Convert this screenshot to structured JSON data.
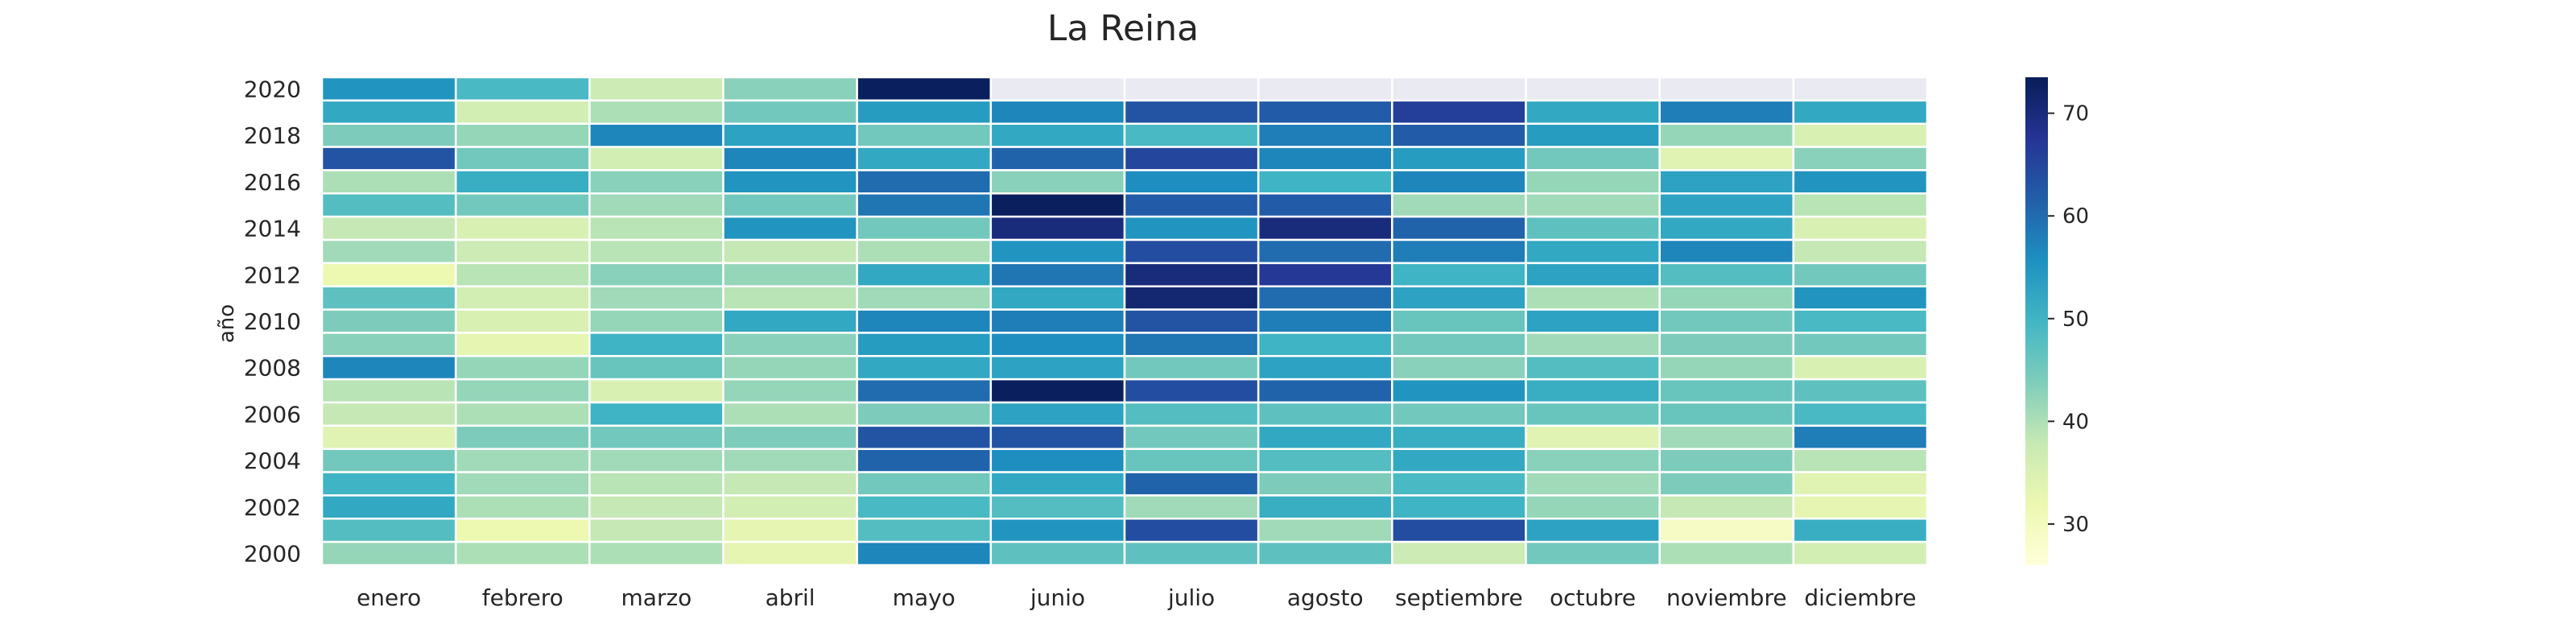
{
  "chart_data": {
    "type": "heatmap",
    "title": "La Reina",
    "xlabel": "",
    "ylabel": "año",
    "x": [
      "enero",
      "febrero",
      "marzo",
      "abril",
      "mayo",
      "junio",
      "julio",
      "agosto",
      "septiembre",
      "octubre",
      "noviembre",
      "diciembre"
    ],
    "y_ticks": [
      "2020",
      "2018",
      "2016",
      "2014",
      "2012",
      "2010",
      "2008",
      "2006",
      "2004",
      "2002",
      "2000"
    ],
    "rows": [
      {
        "year": 2020,
        "values": [
          55,
          49,
          37,
          43,
          73,
          null,
          null,
          null,
          null,
          null,
          null,
          null
        ]
      },
      {
        "year": 2019,
        "values": [
          52,
          36,
          40,
          45,
          54,
          57,
          63,
          62,
          66,
          52,
          58,
          52
        ]
      },
      {
        "year": 2018,
        "values": [
          44,
          42,
          57,
          53,
          45,
          52,
          49,
          58,
          62,
          54,
          42,
          35
        ]
      },
      {
        "year": 2017,
        "values": [
          63,
          45,
          36,
          57,
          52,
          61,
          65,
          57,
          54,
          45,
          34,
          43
        ]
      },
      {
        "year": 2016,
        "values": [
          40,
          51,
          43,
          55,
          60,
          43,
          56,
          50,
          57,
          42,
          53,
          55
        ]
      },
      {
        "year": 2015,
        "values": [
          48,
          45,
          41,
          45,
          59,
          73,
          62,
          62,
          41,
          41,
          53,
          39
        ]
      },
      {
        "year": 2014,
        "values": [
          38,
          35,
          39,
          55,
          45,
          70,
          55,
          70,
          61,
          47,
          52,
          35
        ]
      },
      {
        "year": 2013,
        "values": [
          41,
          37,
          39,
          38,
          40,
          55,
          64,
          60,
          58,
          52,
          57,
          38
        ]
      },
      {
        "year": 2012,
        "values": [
          32,
          39,
          43,
          42,
          52,
          59,
          70,
          67,
          50,
          53,
          48,
          45
        ]
      },
      {
        "year": 2011,
        "values": [
          47,
          36,
          41,
          39,
          41,
          52,
          71,
          60,
          53,
          40,
          42,
          55
        ]
      },
      {
        "year": 2010,
        "values": [
          44,
          35,
          42,
          52,
          57,
          58,
          63,
          58,
          46,
          53,
          45,
          49
        ]
      },
      {
        "year": 2009,
        "values": [
          43,
          33,
          50,
          43,
          54,
          56,
          59,
          50,
          45,
          41,
          44,
          45
        ]
      },
      {
        "year": 2008,
        "values": [
          57,
          42,
          46,
          42,
          52,
          53,
          45,
          53,
          43,
          48,
          42,
          35
        ]
      },
      {
        "year": 2007,
        "values": [
          39,
          42,
          35,
          42,
          60,
          73,
          64,
          61,
          55,
          51,
          46,
          47
        ]
      },
      {
        "year": 2006,
        "values": [
          38,
          40,
          50,
          40,
          44,
          53,
          48,
          47,
          45,
          46,
          46,
          49
        ]
      },
      {
        "year": 2005,
        "values": [
          34,
          44,
          45,
          44,
          63,
          63,
          45,
          52,
          51,
          34,
          41,
          58
        ]
      },
      {
        "year": 2004,
        "values": [
          45,
          41,
          41,
          41,
          61,
          56,
          46,
          48,
          52,
          43,
          44,
          39
        ]
      },
      {
        "year": 2003,
        "values": [
          50,
          41,
          39,
          38,
          45,
          52,
          61,
          44,
          49,
          41,
          44,
          34
        ]
      },
      {
        "year": 2002,
        "values": [
          52,
          40,
          38,
          36,
          49,
          48,
          41,
          51,
          50,
          42,
          38,
          33
        ]
      },
      {
        "year": 2001,
        "values": [
          48,
          32,
          38,
          33,
          48,
          55,
          64,
          41,
          64,
          53,
          29,
          51
        ]
      },
      {
        "year": 2000,
        "values": [
          42,
          40,
          40,
          33,
          57,
          47,
          47,
          47,
          37,
          45,
          40,
          36
        ]
      }
    ],
    "colorbar": {
      "min": 26,
      "max": 73.5,
      "ticks": [
        30,
        40,
        50,
        60,
        70
      ],
      "colormap": "YlGnBu"
    },
    "missing_color": "#eaeaf2",
    "grid": false,
    "legend": "right"
  }
}
